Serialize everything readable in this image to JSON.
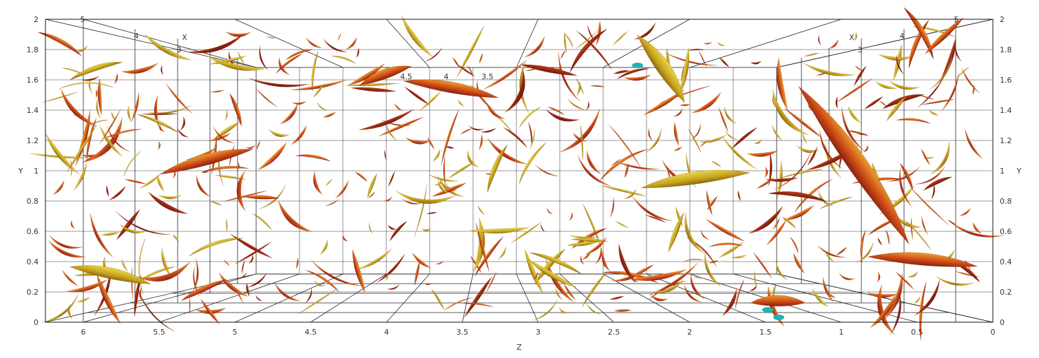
{
  "axes": {
    "left_y_ticks": [
      "0",
      "0.2",
      "0.4",
      "0.6",
      "0.8",
      "1",
      "1.2",
      "1.4",
      "1.6",
      "1.8",
      "2"
    ],
    "right_y_ticks": [
      "0",
      "0.2",
      "0.4",
      "0.6",
      "0.8",
      "1",
      "1.2",
      "1.4",
      "1.6",
      "1.8",
      "2"
    ],
    "y_title_left": "Y",
    "y_title_right": "Y",
    "z_ticks": [
      "6",
      "5.5",
      "5",
      "4.5",
      "4",
      "3.5",
      "3",
      "2.5",
      "2",
      "1.5",
      "1",
      "0.5",
      "0"
    ],
    "z_title": "Z",
    "x_title_left": "X",
    "x_title_right": "X",
    "x_ticks_left": [
      "5",
      "4",
      "3"
    ],
    "x_ticks_right": [
      "3",
      "4",
      "5"
    ],
    "far_wall_ticks": [
      "4.5",
      "4",
      "3.5"
    ]
  },
  "colors": {
    "background": "#ffffff",
    "structure_dark": "#8c1f10",
    "structure_mid": "#d4541a",
    "structure_light": "#e0b22a",
    "structure_highlight": "#cfd23a",
    "structure_rare": "#1fb3b0"
  }
}
